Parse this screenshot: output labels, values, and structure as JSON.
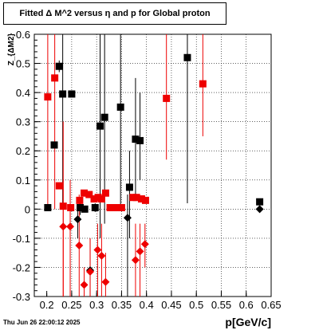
{
  "chart_data": {
    "type": "scatter",
    "title": "Fitted Δ M^2 versus η and p for Global proton",
    "xlabel": "p[GeV/c]",
    "ylabel": "Z_{ΔM2}",
    "xlim": [
      0.175,
      0.65
    ],
    "ylim": [
      -0.3,
      0.6
    ],
    "x_ticks": [
      "0.2",
      "0.25",
      "0.3",
      "0.35",
      "0.4",
      "0.45",
      "0.5",
      "0.55",
      "0.6",
      "0.65"
    ],
    "y_ticks": [
      "-0.3",
      "-0.2",
      "-0.1",
      "0",
      "0.1",
      "0.2",
      "0.3",
      "0.4",
      "0.5",
      "0.6"
    ],
    "grid": true,
    "footer": "Thu Jun 26 22:00:12 2025",
    "series": [
      {
        "marker": "square",
        "color": "#000000",
        "points": [
          {
            "x": 0.202,
            "y": 0.005,
            "lo": 0.005,
            "hi": 0.005
          },
          {
            "x": 0.215,
            "y": 0.22,
            "lo": 0.22,
            "hi": 0.22
          },
          {
            "x": 0.225,
            "y": 0.49,
            "lo": 0.47,
            "hi": 0.51
          },
          {
            "x": 0.232,
            "y": 0.395,
            "lo": 0.0,
            "hi": 0.6
          },
          {
            "x": 0.25,
            "y": 0.395,
            "lo": 0.395,
            "hi": 0.395
          },
          {
            "x": 0.267,
            "y": 0.005,
            "lo": -0.02,
            "hi": 0.03
          },
          {
            "x": 0.276,
            "y": 0.0,
            "lo": -0.01,
            "hi": 0.01
          },
          {
            "x": 0.297,
            "y": 0.005,
            "lo": -0.01,
            "hi": 0.02
          },
          {
            "x": 0.307,
            "y": 0.285,
            "lo": -0.1,
            "hi": 0.6
          },
          {
            "x": 0.316,
            "y": 0.315,
            "lo": -0.05,
            "hi": 0.6
          },
          {
            "x": 0.348,
            "y": 0.35,
            "lo": 0.0,
            "hi": 0.6
          },
          {
            "x": 0.366,
            "y": 0.075,
            "lo": -0.1,
            "hi": 0.2
          },
          {
            "x": 0.378,
            "y": 0.24,
            "lo": 0.05,
            "hi": 0.45
          },
          {
            "x": 0.387,
            "y": 0.235,
            "lo": 0.1,
            "hi": 0.4
          },
          {
            "x": 0.482,
            "y": 0.52,
            "lo": 0.02,
            "hi": 0.6
          },
          {
            "x": 0.627,
            "y": 0.025,
            "lo": 0.025,
            "hi": 0.025
          }
        ]
      },
      {
        "marker": "square",
        "color": "#ee0000",
        "points": [
          {
            "x": 0.202,
            "y": 0.385,
            "lo": 0.0,
            "hi": 0.6
          },
          {
            "x": 0.216,
            "y": 0.45,
            "lo": 0.0,
            "hi": 0.6
          },
          {
            "x": 0.225,
            "y": 0.08,
            "lo": 0.08,
            "hi": 0.08
          },
          {
            "x": 0.233,
            "y": 0.01,
            "lo": -0.3,
            "hi": 0.3
          },
          {
            "x": 0.248,
            "y": 0.005,
            "lo": 0.005,
            "hi": 0.005
          },
          {
            "x": 0.266,
            "y": 0.03,
            "lo": 0.03,
            "hi": 0.03
          },
          {
            "x": 0.275,
            "y": 0.055,
            "lo": 0.055,
            "hi": 0.055
          },
          {
            "x": 0.285,
            "y": 0.05,
            "lo": 0.05,
            "hi": 0.05
          },
          {
            "x": 0.295,
            "y": 0.035,
            "lo": 0.035,
            "hi": 0.035
          },
          {
            "x": 0.303,
            "y": 0.04,
            "lo": 0.04,
            "hi": 0.04
          },
          {
            "x": 0.31,
            "y": 0.035,
            "lo": 0.035,
            "hi": 0.035
          },
          {
            "x": 0.318,
            "y": 0.055,
            "lo": 0.055,
            "hi": 0.055
          },
          {
            "x": 0.327,
            "y": 0.005,
            "lo": 0.005,
            "hi": 0.005
          },
          {
            "x": 0.334,
            "y": 0.005,
            "lo": 0.005,
            "hi": 0.005
          },
          {
            "x": 0.342,
            "y": 0.005,
            "lo": 0.005,
            "hi": 0.005
          },
          {
            "x": 0.35,
            "y": 0.005,
            "lo": 0.005,
            "hi": 0.005
          },
          {
            "x": 0.373,
            "y": 0.04,
            "lo": 0.04,
            "hi": 0.04
          },
          {
            "x": 0.38,
            "y": 0.04,
            "lo": 0.04,
            "hi": 0.04
          },
          {
            "x": 0.39,
            "y": 0.035,
            "lo": 0.035,
            "hi": 0.035
          },
          {
            "x": 0.398,
            "y": 0.03,
            "lo": 0.03,
            "hi": 0.03
          },
          {
            "x": 0.44,
            "y": 0.38,
            "lo": 0.17,
            "hi": 0.6
          },
          {
            "x": 0.513,
            "y": 0.43,
            "lo": 0.25,
            "hi": 0.6
          }
        ]
      },
      {
        "marker": "diamond",
        "color": "#000000",
        "points": [
          {
            "x": 0.262,
            "y": -0.035,
            "lo": -0.1,
            "hi": 0.0
          },
          {
            "x": 0.287,
            "y": -0.21,
            "lo": -0.3,
            "hi": -0.1
          },
          {
            "x": 0.362,
            "y": -0.03,
            "lo": -0.3,
            "hi": 0.05
          },
          {
            "x": 0.627,
            "y": 0.0,
            "lo": 0.0,
            "hi": 0.0
          }
        ]
      },
      {
        "marker": "diamond",
        "color": "#ee0000",
        "points": [
          {
            "x": 0.233,
            "y": -0.06,
            "lo": -0.3,
            "hi": 0.1
          },
          {
            "x": 0.247,
            "y": -0.06,
            "lo": -0.3,
            "hi": 0.1
          },
          {
            "x": 0.265,
            "y": -0.125,
            "lo": -0.3,
            "hi": 0.05
          },
          {
            "x": 0.275,
            "y": -0.26,
            "lo": -0.3,
            "hi": -0.2
          },
          {
            "x": 0.287,
            "y": -0.215,
            "lo": -0.3,
            "hi": -0.1
          },
          {
            "x": 0.302,
            "y": -0.14,
            "lo": -0.3,
            "hi": -0.05
          },
          {
            "x": 0.31,
            "y": -0.16,
            "lo": -0.3,
            "hi": -0.05
          },
          {
            "x": 0.318,
            "y": -0.25,
            "lo": -0.3,
            "hi": -0.15
          },
          {
            "x": 0.378,
            "y": -0.175,
            "lo": -0.3,
            "hi": -0.05
          },
          {
            "x": 0.387,
            "y": -0.145,
            "lo": -0.3,
            "hi": -0.05
          },
          {
            "x": 0.397,
            "y": -0.12,
            "lo": -0.2,
            "hi": -0.05
          }
        ]
      }
    ]
  }
}
